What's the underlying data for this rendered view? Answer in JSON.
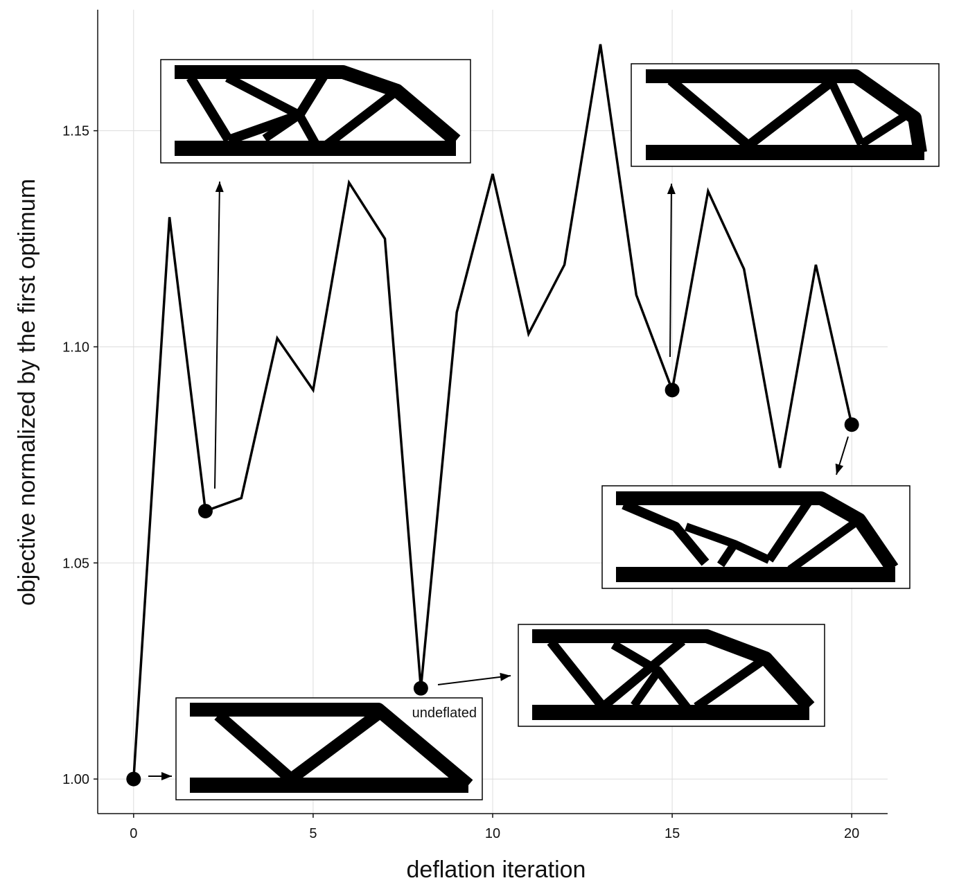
{
  "chart_data": {
    "type": "line",
    "xlabel": "deflation iteration",
    "ylabel": "objective normalized by the first optimum",
    "xlim": [
      -1,
      21
    ],
    "ylim": [
      0.992,
      1.178
    ],
    "xticks": [
      0,
      5,
      10,
      15,
      20
    ],
    "yticks": [
      1.0,
      1.05,
      1.1,
      1.15
    ],
    "xtick_labels": [
      "0",
      "5",
      "10",
      "15",
      "20"
    ],
    "ytick_labels": [
      "1.00",
      "1.05",
      "1.10",
      "1.15"
    ],
    "grid": true,
    "series": [
      {
        "x": [
          0,
          1,
          2,
          3,
          4,
          5,
          6,
          7,
          8,
          9,
          10,
          11,
          12,
          13,
          14,
          15,
          16,
          17,
          18,
          19,
          20
        ],
        "values": [
          1.0,
          1.13,
          1.062,
          1.065,
          1.102,
          1.09,
          1.138,
          1.125,
          1.021,
          1.108,
          1.14,
          1.103,
          1.119,
          1.17,
          1.112,
          1.09,
          1.136,
          1.118,
          1.072,
          1.119,
          1.082
        ]
      }
    ],
    "highlighted_points": [
      0,
      2,
      8,
      15,
      20
    ],
    "annotations": [
      {
        "text": "undeflated",
        "point_index": 0
      }
    ],
    "colors": {
      "line": "#000000",
      "grid": "#dcdcdc",
      "structure": "#000000"
    }
  }
}
